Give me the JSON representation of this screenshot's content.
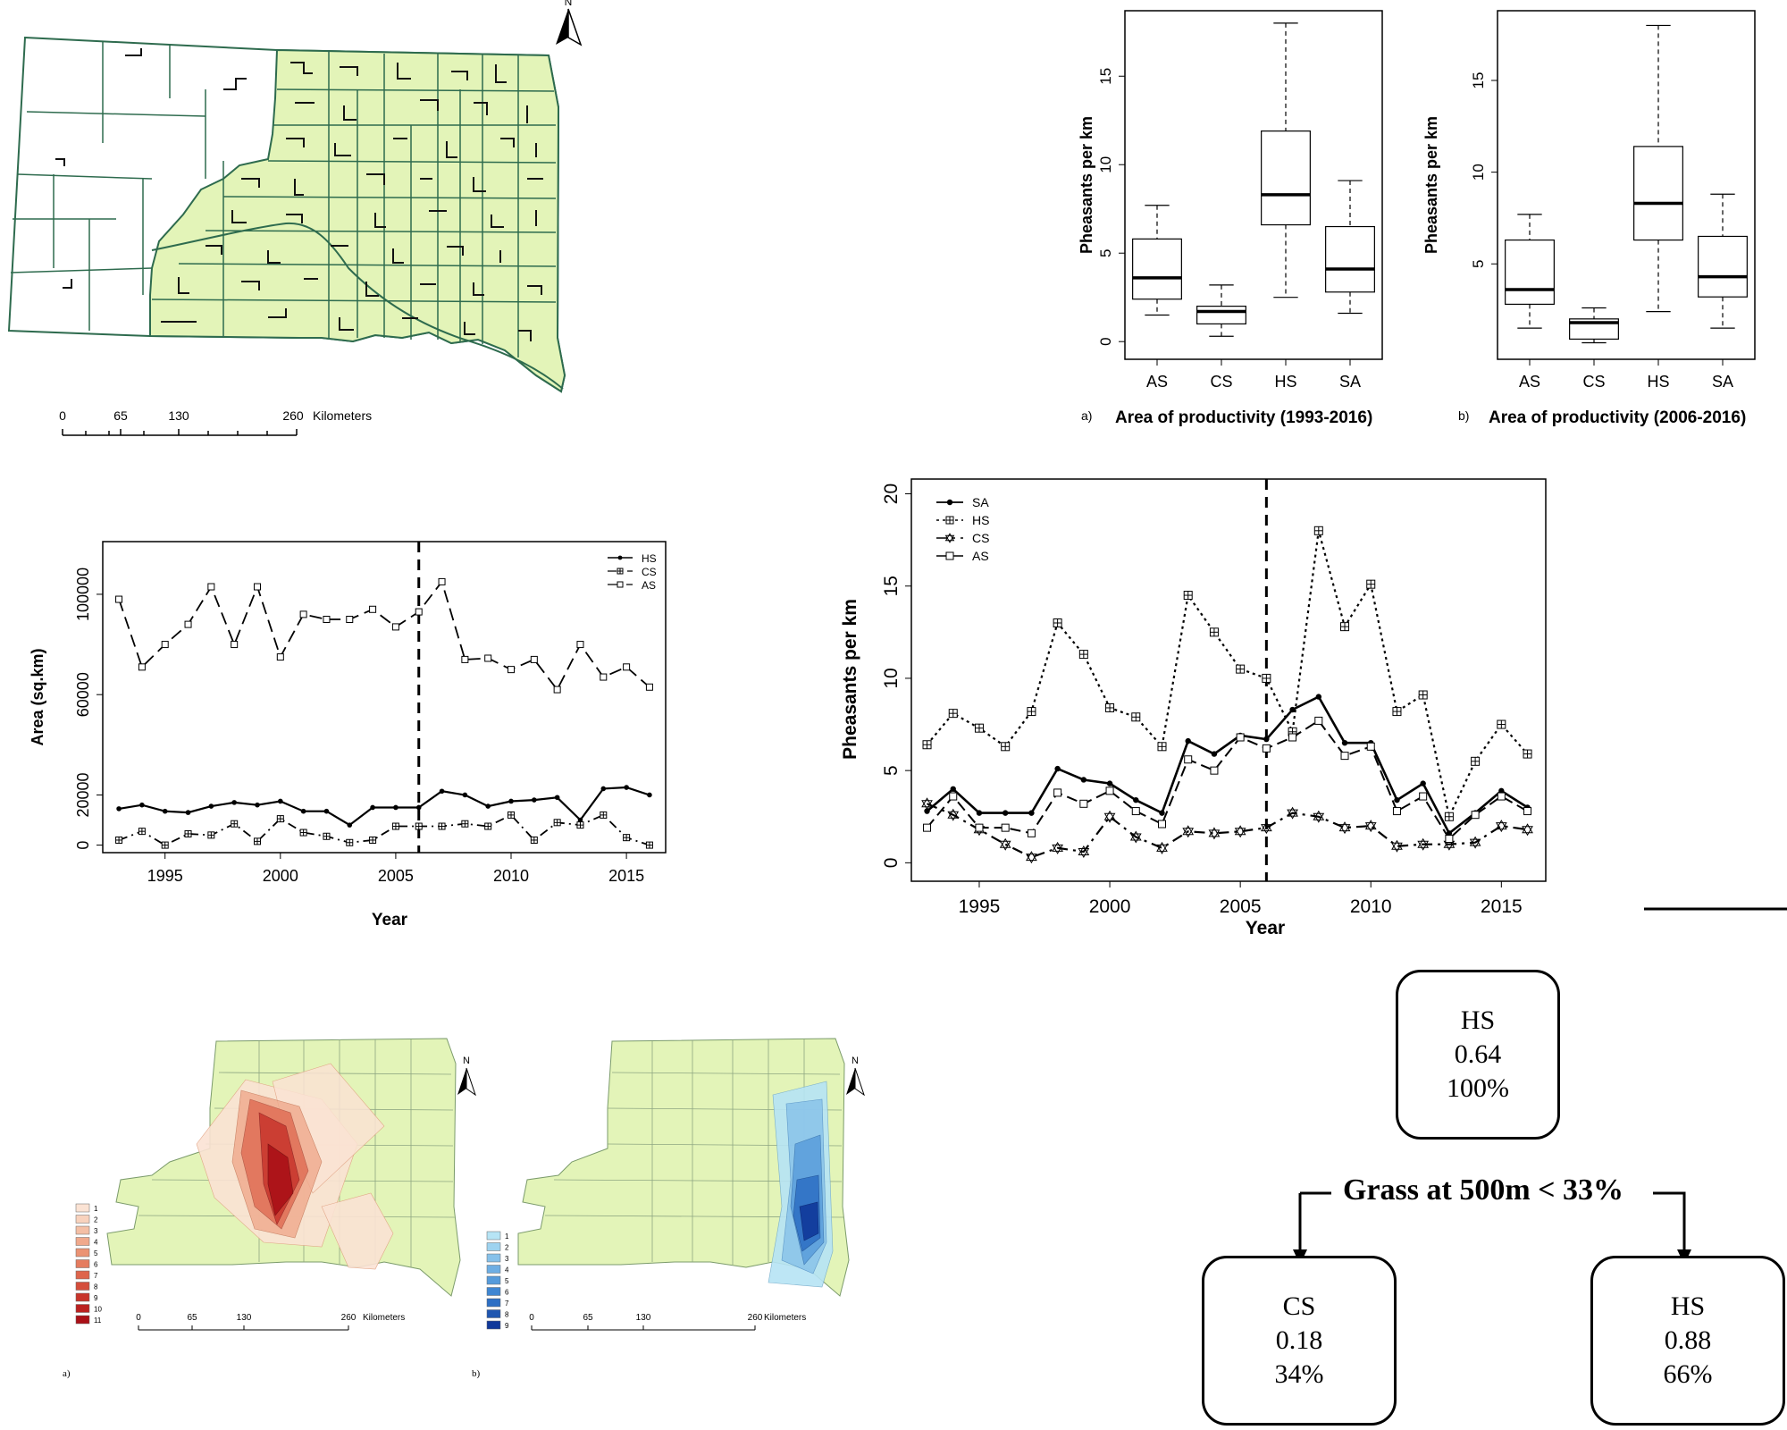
{
  "top_map": {
    "north": "N",
    "scale": {
      "ticks": [
        "0",
        "65",
        "130",
        "260"
      ],
      "unit": "Kilometers"
    }
  },
  "bottom_maps": {
    "a": {
      "label": "a)",
      "legend": [
        "1",
        "2",
        "3",
        "4",
        "5",
        "6",
        "7",
        "8",
        "9",
        "10",
        "11"
      ],
      "colors": [
        "#fbe3d4",
        "#f8d2bd",
        "#f4bfa5",
        "#f0a98c",
        "#eb9374",
        "#e57c5f",
        "#de654c",
        "#d44d3b",
        "#c8352c",
        "#bb2120",
        "#aa1017"
      ],
      "scale": {
        "ticks": [
          "0",
          "65",
          "130",
          "260"
        ],
        "unit": "Kilometers"
      },
      "north": "N"
    },
    "b": {
      "label": "b)",
      "legend": [
        "1",
        "2",
        "3",
        "4",
        "5",
        "6",
        "7",
        "8",
        "9"
      ],
      "colors": [
        "#b6e4f5",
        "#9ed3f0",
        "#86c1ea",
        "#6eaee3",
        "#569bdb",
        "#3f86d2",
        "#2d6fc4",
        "#1f56b0",
        "#10399a"
      ],
      "scale": {
        "ticks": [
          "0",
          "65",
          "130",
          "260"
        ],
        "unit": "Kilometers"
      },
      "north": "N"
    }
  },
  "tree": {
    "root": {
      "label": "HS",
      "value": "0.64",
      "pct": "100%"
    },
    "split": "Grass at 500m < 33%",
    "left": {
      "label": "CS",
      "value": "0.18",
      "pct": "34%"
    },
    "right": {
      "label": "HS",
      "value": "0.88",
      "pct": "66%"
    }
  },
  "chart_data": [
    {
      "type": "box",
      "panel_label": "a)",
      "xlabel": "Area of productivity (1993-2016)",
      "ylabel": "Pheasants per km",
      "categories": [
        "AS",
        "CS",
        "HS",
        "SA"
      ],
      "ylim": [
        -1,
        18.7
      ],
      "yticks": [
        0,
        5,
        10,
        15
      ],
      "boxes": [
        {
          "min": 1.5,
          "q1": 2.4,
          "median": 3.6,
          "q3": 5.8,
          "max": 7.7
        },
        {
          "min": 0.3,
          "q1": 1.0,
          "median": 1.7,
          "q3": 2.0,
          "max": 3.2
        },
        {
          "min": 2.5,
          "q1": 6.6,
          "median": 8.3,
          "q3": 11.9,
          "max": 18.0
        },
        {
          "min": 1.6,
          "q1": 2.8,
          "median": 4.1,
          "q3": 6.5,
          "max": 9.1
        }
      ]
    },
    {
      "type": "box",
      "panel_label": "b)",
      "xlabel": "Area of productivity (2006-2016)",
      "ylabel": "Pheasants per km",
      "categories": [
        "AS",
        "CS",
        "HS",
        "SA"
      ],
      "ylim": [
        -0.2,
        18.8
      ],
      "yticks": [
        5,
        10,
        15
      ],
      "boxes": [
        {
          "min": 1.5,
          "q1": 2.8,
          "median": 3.6,
          "q3": 6.3,
          "max": 7.7
        },
        {
          "min": 0.7,
          "q1": 0.9,
          "median": 1.8,
          "q3": 2.0,
          "max": 2.6
        },
        {
          "min": 2.4,
          "q1": 6.3,
          "median": 8.3,
          "q3": 11.4,
          "max": 18.0
        },
        {
          "min": 1.5,
          "q1": 3.2,
          "median": 4.3,
          "q3": 6.5,
          "max": 8.8
        }
      ]
    },
    {
      "type": "line",
      "xlabel": "Year",
      "ylabel": "Area (sq.km)",
      "xlim": [
        1992.3,
        2016.7
      ],
      "ylim": [
        -3000,
        121000
      ],
      "xticks": [
        1995,
        2000,
        2005,
        2010,
        2015
      ],
      "yticks": [
        0,
        20000,
        60000,
        100000
      ],
      "vline": 2006,
      "legend_position": "top-right",
      "x": [
        1993,
        1994,
        1995,
        1996,
        1997,
        1998,
        1999,
        2000,
        2001,
        2002,
        2003,
        2004,
        2005,
        2006,
        2007,
        2008,
        2009,
        2010,
        2011,
        2012,
        2013,
        2014,
        2015,
        2016
      ],
      "series": [
        {
          "name": "HS",
          "values": [
            14500,
            16000,
            13500,
            13000,
            15500,
            17000,
            16000,
            17500,
            13500,
            13500,
            8000,
            15000,
            15000,
            15000,
            21500,
            20000,
            15500,
            17500,
            18000,
            19000,
            10000,
            22500,
            23000,
            20000
          ]
        },
        {
          "name": "CS",
          "values": [
            2000,
            5500,
            0,
            4500,
            4000,
            8500,
            1500,
            10500,
            5000,
            3500,
            1000,
            2000,
            7500,
            7500,
            7500,
            8500,
            7500,
            12000,
            2000,
            9000,
            8000,
            12000,
            3000,
            0
          ]
        },
        {
          "name": "AS",
          "values": [
            98000,
            71000,
            80000,
            88000,
            103000,
            80000,
            103000,
            75000,
            92000,
            90000,
            90000,
            94000,
            87000,
            93000,
            105000,
            74000,
            74500,
            70000,
            74000,
            62000,
            80000,
            67000,
            71000,
            63000
          ]
        }
      ]
    },
    {
      "type": "line",
      "xlabel": "Year",
      "ylabel": "Pheasants per km",
      "xlim": [
        1992.4,
        2016.7
      ],
      "ylim": [
        -1,
        20.8
      ],
      "xticks": [
        1995,
        2000,
        2005,
        2010,
        2015
      ],
      "yticks": [
        0,
        5,
        10,
        15,
        20
      ],
      "vline": 2006,
      "legend_position": "top-left",
      "x": [
        1993,
        1994,
        1995,
        1996,
        1997,
        1998,
        1999,
        2000,
        2001,
        2002,
        2003,
        2004,
        2005,
        2006,
        2007,
        2008,
        2009,
        2010,
        2011,
        2012,
        2013,
        2014,
        2015,
        2016
      ],
      "series": [
        {
          "name": "SA",
          "values": [
            2.8,
            4.0,
            2.7,
            2.7,
            2.7,
            5.1,
            4.5,
            4.3,
            3.4,
            2.7,
            6.6,
            5.9,
            6.9,
            6.7,
            8.3,
            9.0,
            6.5,
            6.5,
            3.4,
            4.3,
            1.6,
            2.7,
            3.9,
            3.0
          ]
        },
        {
          "name": "HS",
          "values": [
            6.4,
            8.1,
            7.3,
            6.3,
            8.2,
            13.0,
            11.3,
            8.4,
            7.9,
            6.3,
            14.5,
            12.5,
            10.5,
            10.0,
            7.1,
            18.0,
            12.8,
            15.1,
            8.2,
            9.1,
            2.5,
            5.5,
            7.5,
            5.9
          ]
        },
        {
          "name": "CS",
          "values": [
            3.2,
            2.6,
            1.8,
            1.0,
            0.3,
            0.8,
            0.6,
            2.5,
            1.4,
            0.8,
            1.7,
            1.6,
            1.7,
            1.9,
            2.7,
            2.5,
            1.9,
            2.0,
            0.9,
            1.0,
            1.0,
            1.1,
            2.0,
            1.8
          ]
        },
        {
          "name": "AS",
          "values": [
            1.9,
            3.6,
            1.9,
            1.9,
            1.6,
            3.8,
            3.2,
            3.9,
            2.8,
            2.1,
            5.6,
            5.0,
            6.8,
            6.2,
            6.8,
            7.7,
            5.8,
            6.3,
            2.8,
            3.6,
            1.3,
            2.6,
            3.6,
            2.8
          ]
        }
      ]
    }
  ]
}
